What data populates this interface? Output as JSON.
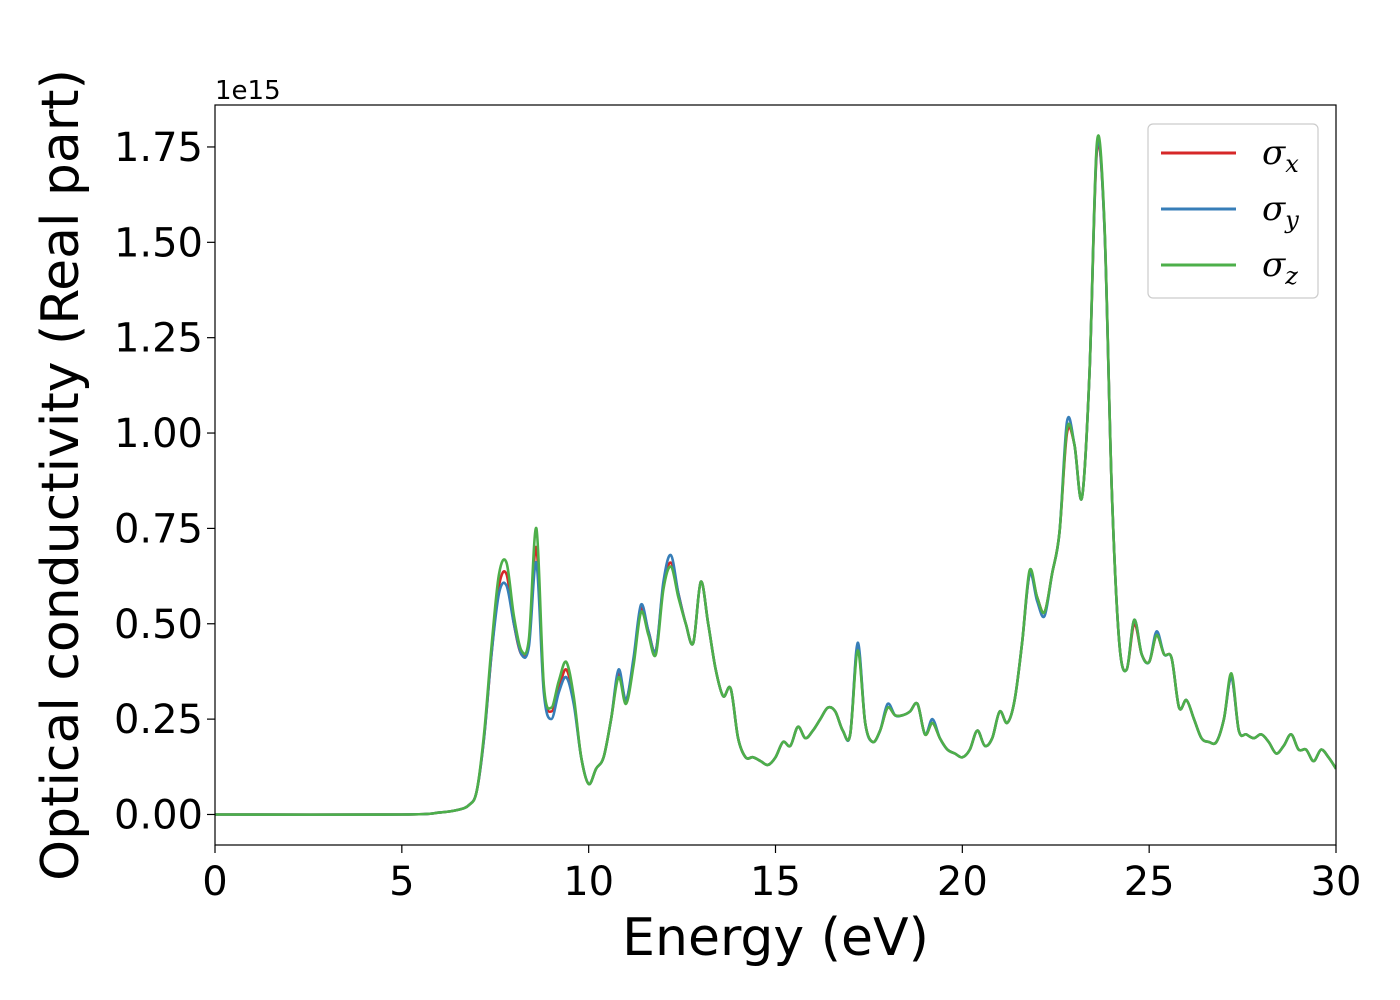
{
  "chart_data": {
    "type": "line",
    "xlabel": "Energy (eV)",
    "ylabel": "Optical conductivity (Real part)",
    "y_offset_label": "1e15",
    "xlim": [
      0,
      30
    ],
    "ylim": [
      -0.08,
      1.86
    ],
    "x_ticks": [
      0,
      5,
      10,
      15,
      20,
      25,
      30
    ],
    "x_tick_labels": [
      "0",
      "5",
      "10",
      "15",
      "20",
      "25",
      "30"
    ],
    "y_ticks": [
      0.0,
      0.25,
      0.5,
      0.75,
      1.0,
      1.25,
      1.5,
      1.75
    ],
    "y_tick_labels": [
      "0.00",
      "0.25",
      "0.50",
      "0.75",
      "1.00",
      "1.25",
      "1.50",
      "1.75"
    ],
    "grid": false,
    "legend_position": "top-right",
    "x": [
      0,
      5,
      6,
      6.5,
      6.8,
      7.0,
      7.2,
      7.4,
      7.6,
      7.8,
      8.0,
      8.2,
      8.4,
      8.6,
      8.8,
      9.0,
      9.2,
      9.4,
      9.6,
      9.8,
      10.0,
      10.2,
      10.4,
      10.6,
      10.8,
      11.0,
      11.2,
      11.4,
      11.6,
      11.8,
      12.0,
      12.2,
      12.4,
      12.6,
      12.8,
      13.0,
      13.2,
      13.4,
      13.6,
      13.8,
      14.0,
      14.2,
      14.4,
      14.6,
      14.8,
      15.0,
      15.2,
      15.4,
      15.6,
      15.8,
      16.0,
      16.2,
      16.4,
      16.6,
      16.8,
      17.0,
      17.2,
      17.4,
      17.6,
      17.8,
      18.0,
      18.2,
      18.4,
      18.6,
      18.8,
      19.0,
      19.2,
      19.4,
      19.6,
      19.8,
      20.0,
      20.2,
      20.4,
      20.6,
      20.8,
      21.0,
      21.2,
      21.4,
      21.6,
      21.8,
      22.0,
      22.2,
      22.4,
      22.6,
      22.8,
      23.0,
      23.2,
      23.4,
      23.6,
      23.8,
      24.0,
      24.2,
      24.4,
      24.6,
      24.8,
      25.0,
      25.2,
      25.4,
      25.6,
      25.8,
      26.0,
      26.2,
      26.4,
      26.6,
      26.8,
      27.0,
      27.2,
      27.4,
      27.6,
      27.8,
      28.0,
      28.2,
      28.4,
      28.6,
      28.8,
      29.0,
      29.2,
      29.4,
      29.6,
      29.8,
      30.0
    ],
    "series": [
      {
        "name": "σ_x",
        "color": "#d62728",
        "values": [
          0.0,
          0.0,
          0.005,
          0.012,
          0.025,
          0.06,
          0.2,
          0.42,
          0.6,
          0.63,
          0.5,
          0.42,
          0.45,
          0.7,
          0.33,
          0.27,
          0.33,
          0.38,
          0.3,
          0.15,
          0.08,
          0.12,
          0.15,
          0.25,
          0.37,
          0.3,
          0.4,
          0.54,
          0.48,
          0.43,
          0.6,
          0.66,
          0.58,
          0.5,
          0.45,
          0.61,
          0.5,
          0.38,
          0.31,
          0.33,
          0.2,
          0.15,
          0.15,
          0.14,
          0.13,
          0.15,
          0.19,
          0.18,
          0.23,
          0.2,
          0.22,
          0.25,
          0.28,
          0.27,
          0.22,
          0.21,
          0.44,
          0.24,
          0.19,
          0.22,
          0.28,
          0.26,
          0.26,
          0.27,
          0.29,
          0.21,
          0.24,
          0.2,
          0.17,
          0.16,
          0.15,
          0.17,
          0.22,
          0.18,
          0.2,
          0.27,
          0.24,
          0.3,
          0.45,
          0.63,
          0.57,
          0.53,
          0.63,
          0.74,
          1.0,
          0.97,
          0.83,
          1.15,
          1.74,
          1.55,
          0.85,
          0.45,
          0.38,
          0.5,
          0.42,
          0.4,
          0.47,
          0.42,
          0.41,
          0.28,
          0.3,
          0.25,
          0.2,
          0.19,
          0.19,
          0.25,
          0.36,
          0.22,
          0.21,
          0.2,
          0.21,
          0.19,
          0.16,
          0.18,
          0.21,
          0.17,
          0.17,
          0.14,
          0.17,
          0.15,
          0.12
        ]
      },
      {
        "name": "σ_y",
        "color": "#377eb8",
        "values": [
          0.0,
          0.0,
          0.005,
          0.012,
          0.025,
          0.06,
          0.2,
          0.42,
          0.58,
          0.6,
          0.5,
          0.42,
          0.44,
          0.66,
          0.32,
          0.25,
          0.32,
          0.36,
          0.29,
          0.15,
          0.08,
          0.12,
          0.15,
          0.25,
          0.38,
          0.3,
          0.41,
          0.55,
          0.48,
          0.43,
          0.61,
          0.68,
          0.58,
          0.5,
          0.45,
          0.61,
          0.5,
          0.38,
          0.31,
          0.33,
          0.2,
          0.15,
          0.15,
          0.14,
          0.13,
          0.15,
          0.19,
          0.18,
          0.23,
          0.2,
          0.22,
          0.25,
          0.28,
          0.27,
          0.22,
          0.21,
          0.45,
          0.24,
          0.19,
          0.22,
          0.29,
          0.26,
          0.26,
          0.27,
          0.29,
          0.21,
          0.25,
          0.2,
          0.17,
          0.16,
          0.15,
          0.17,
          0.22,
          0.18,
          0.2,
          0.27,
          0.24,
          0.3,
          0.45,
          0.63,
          0.56,
          0.52,
          0.63,
          0.74,
          1.03,
          0.97,
          0.83,
          1.15,
          1.75,
          1.55,
          0.85,
          0.45,
          0.38,
          0.51,
          0.42,
          0.4,
          0.48,
          0.42,
          0.41,
          0.28,
          0.3,
          0.25,
          0.2,
          0.19,
          0.19,
          0.25,
          0.36,
          0.22,
          0.21,
          0.2,
          0.21,
          0.19,
          0.16,
          0.18,
          0.21,
          0.17,
          0.17,
          0.14,
          0.17,
          0.15,
          0.12
        ]
      },
      {
        "name": "σ_z",
        "color": "#4daf4a",
        "values": [
          0.0,
          0.0,
          0.005,
          0.012,
          0.025,
          0.06,
          0.21,
          0.44,
          0.63,
          0.66,
          0.52,
          0.43,
          0.46,
          0.75,
          0.34,
          0.28,
          0.35,
          0.4,
          0.31,
          0.15,
          0.08,
          0.12,
          0.15,
          0.25,
          0.36,
          0.29,
          0.39,
          0.53,
          0.47,
          0.42,
          0.59,
          0.65,
          0.57,
          0.5,
          0.45,
          0.61,
          0.5,
          0.38,
          0.31,
          0.33,
          0.2,
          0.15,
          0.15,
          0.14,
          0.13,
          0.15,
          0.19,
          0.18,
          0.23,
          0.2,
          0.22,
          0.25,
          0.28,
          0.27,
          0.22,
          0.21,
          0.43,
          0.24,
          0.19,
          0.22,
          0.28,
          0.26,
          0.26,
          0.27,
          0.29,
          0.21,
          0.24,
          0.2,
          0.17,
          0.16,
          0.15,
          0.17,
          0.22,
          0.18,
          0.2,
          0.27,
          0.24,
          0.3,
          0.45,
          0.64,
          0.57,
          0.53,
          0.63,
          0.74,
          1.01,
          0.97,
          0.83,
          1.15,
          1.76,
          1.56,
          0.85,
          0.45,
          0.38,
          0.51,
          0.42,
          0.4,
          0.47,
          0.42,
          0.41,
          0.28,
          0.3,
          0.25,
          0.2,
          0.19,
          0.19,
          0.25,
          0.37,
          0.22,
          0.21,
          0.2,
          0.21,
          0.19,
          0.16,
          0.18,
          0.21,
          0.17,
          0.17,
          0.14,
          0.17,
          0.15,
          0.12
        ]
      }
    ],
    "legend": [
      {
        "symbol": "σ",
        "sub": "x",
        "color": "#d62728"
      },
      {
        "symbol": "σ",
        "sub": "y",
        "color": "#377eb8"
      },
      {
        "symbol": "σ",
        "sub": "z",
        "color": "#4daf4a"
      }
    ]
  }
}
